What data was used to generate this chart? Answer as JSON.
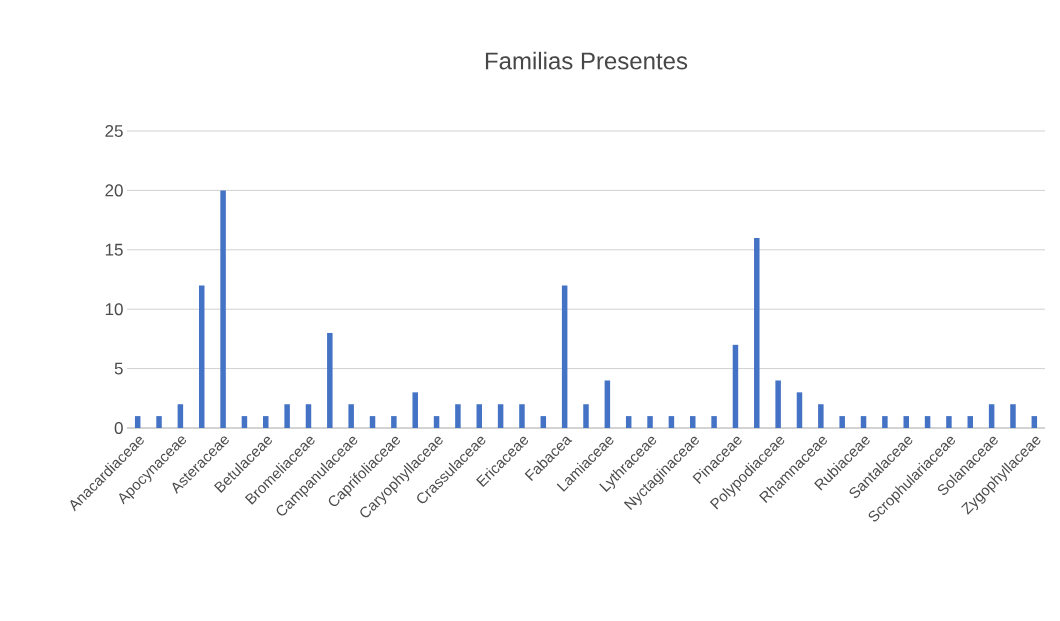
{
  "chart_data": {
    "type": "bar",
    "title": "Familias Presentes",
    "categories": [
      "Anacardiaceae",
      null,
      "Apocynaceae",
      null,
      "Asteraceae",
      null,
      "Betulaceae",
      null,
      "Bromeliaceae",
      null,
      "Campanulaceae",
      null,
      "Caprifoliaceae",
      null,
      "Caryophyllaceae",
      null,
      "Crassulaceae",
      null,
      "Ericaceae",
      null,
      "Fabacea",
      null,
      "Lamiaceae",
      null,
      "Lythraceae",
      null,
      "Nyctaginaceae",
      null,
      "Pinaceae",
      null,
      "Polypodiaceae",
      null,
      "Rhamnaceae",
      null,
      "Rubiaceae",
      null,
      "Santalaceae",
      null,
      "Scrophulariaceae",
      null,
      "Solanaceae",
      null,
      "Zygophyllaceae"
    ],
    "values": [
      1,
      1,
      2,
      12,
      20,
      1,
      1,
      2,
      2,
      8,
      2,
      1,
      1,
      3,
      1,
      2,
      2,
      2,
      2,
      1,
      12,
      2,
      4,
      1,
      1,
      1,
      1,
      1,
      7,
      16,
      4,
      3,
      2,
      1,
      1,
      1,
      1,
      1,
      1,
      1,
      2,
      2,
      1
    ],
    "color": "#4472c4",
    "ylim": [
      0,
      25
    ],
    "yticks": [
      0,
      5,
      10,
      15,
      20,
      25
    ],
    "grid": "y"
  }
}
